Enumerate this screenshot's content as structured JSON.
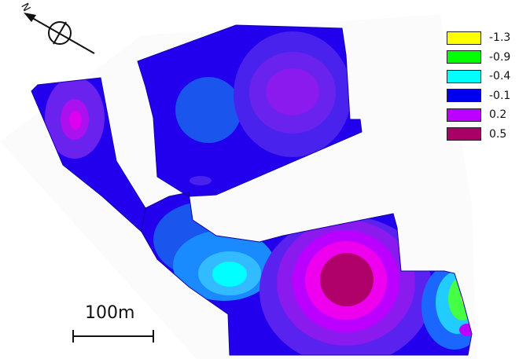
{
  "north_arrow": {
    "letter": "N"
  },
  "legend": {
    "items": [
      {
        "label": "-1.3",
        "color": "#ffff00"
      },
      {
        "label": "-0.9",
        "color": "#00ff00"
      },
      {
        "label": "-0.4",
        "color": "#00ffff"
      },
      {
        "label": "-0.1",
        "color": "#0000ee"
      },
      {
        "label": "0.2",
        "color": "#bb00ff"
      },
      {
        "label": "0.5",
        "color": "#aa0066"
      }
    ]
  },
  "scale_bar": {
    "label": "100m"
  },
  "colors": {
    "base_blue": "#2200ee",
    "mid_blue": "#1a55ee",
    "light_blue": "#3399ff",
    "cyan": "#00ffff",
    "violet": "#6a22ee",
    "purple": "#8a1aee",
    "magenta": "#cc00ff",
    "hot_magenta": "#ee00ee",
    "core": "#b0006a",
    "green": "#44ff44",
    "yellow": "#ffff00"
  }
}
